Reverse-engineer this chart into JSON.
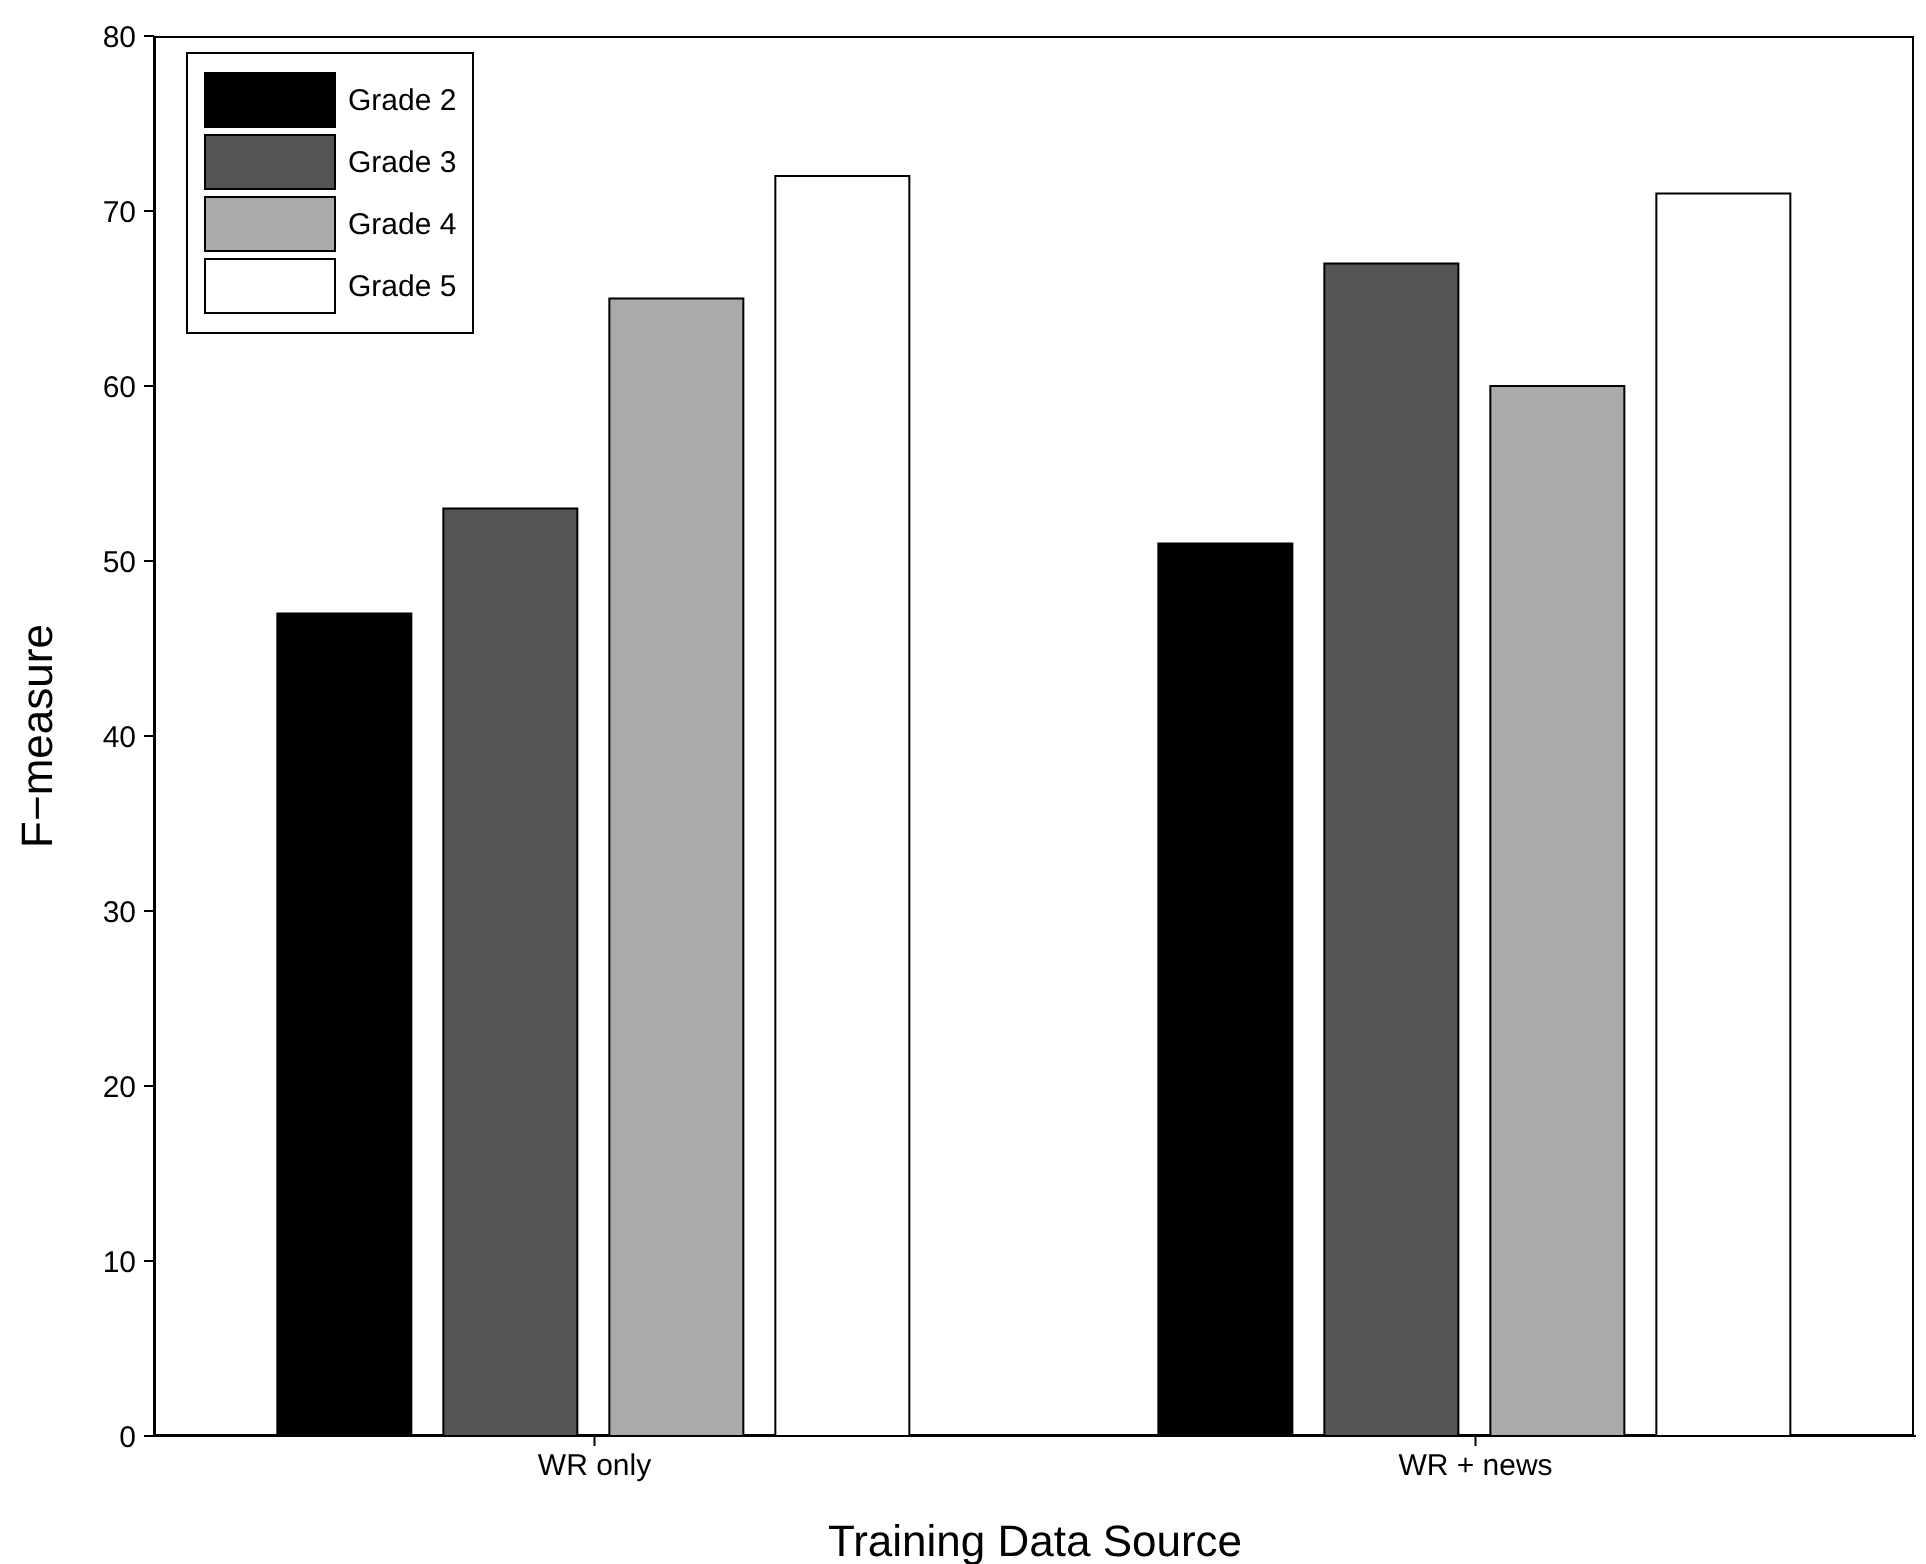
{
  "chart_data": {
    "type": "bar",
    "xlabel": "Training Data Source",
    "ylabel": "F−measure",
    "categories": [
      "WR only",
      "WR + news"
    ],
    "series": [
      {
        "name": "Grade 2",
        "color": "#000000",
        "values": [
          47,
          51
        ]
      },
      {
        "name": "Grade 3",
        "color": "#555555",
        "values": [
          53,
          67
        ]
      },
      {
        "name": "Grade 4",
        "color": "#aaaaaa",
        "values": [
          65,
          60
        ]
      },
      {
        "name": "Grade 5",
        "color": "#ffffff",
        "values": [
          72,
          71
        ]
      }
    ],
    "ylim": [
      0,
      80
    ],
    "yticks": [
      0,
      10,
      20,
      30,
      40,
      50,
      60,
      70,
      80
    ],
    "grid": false,
    "legend": "top left"
  }
}
